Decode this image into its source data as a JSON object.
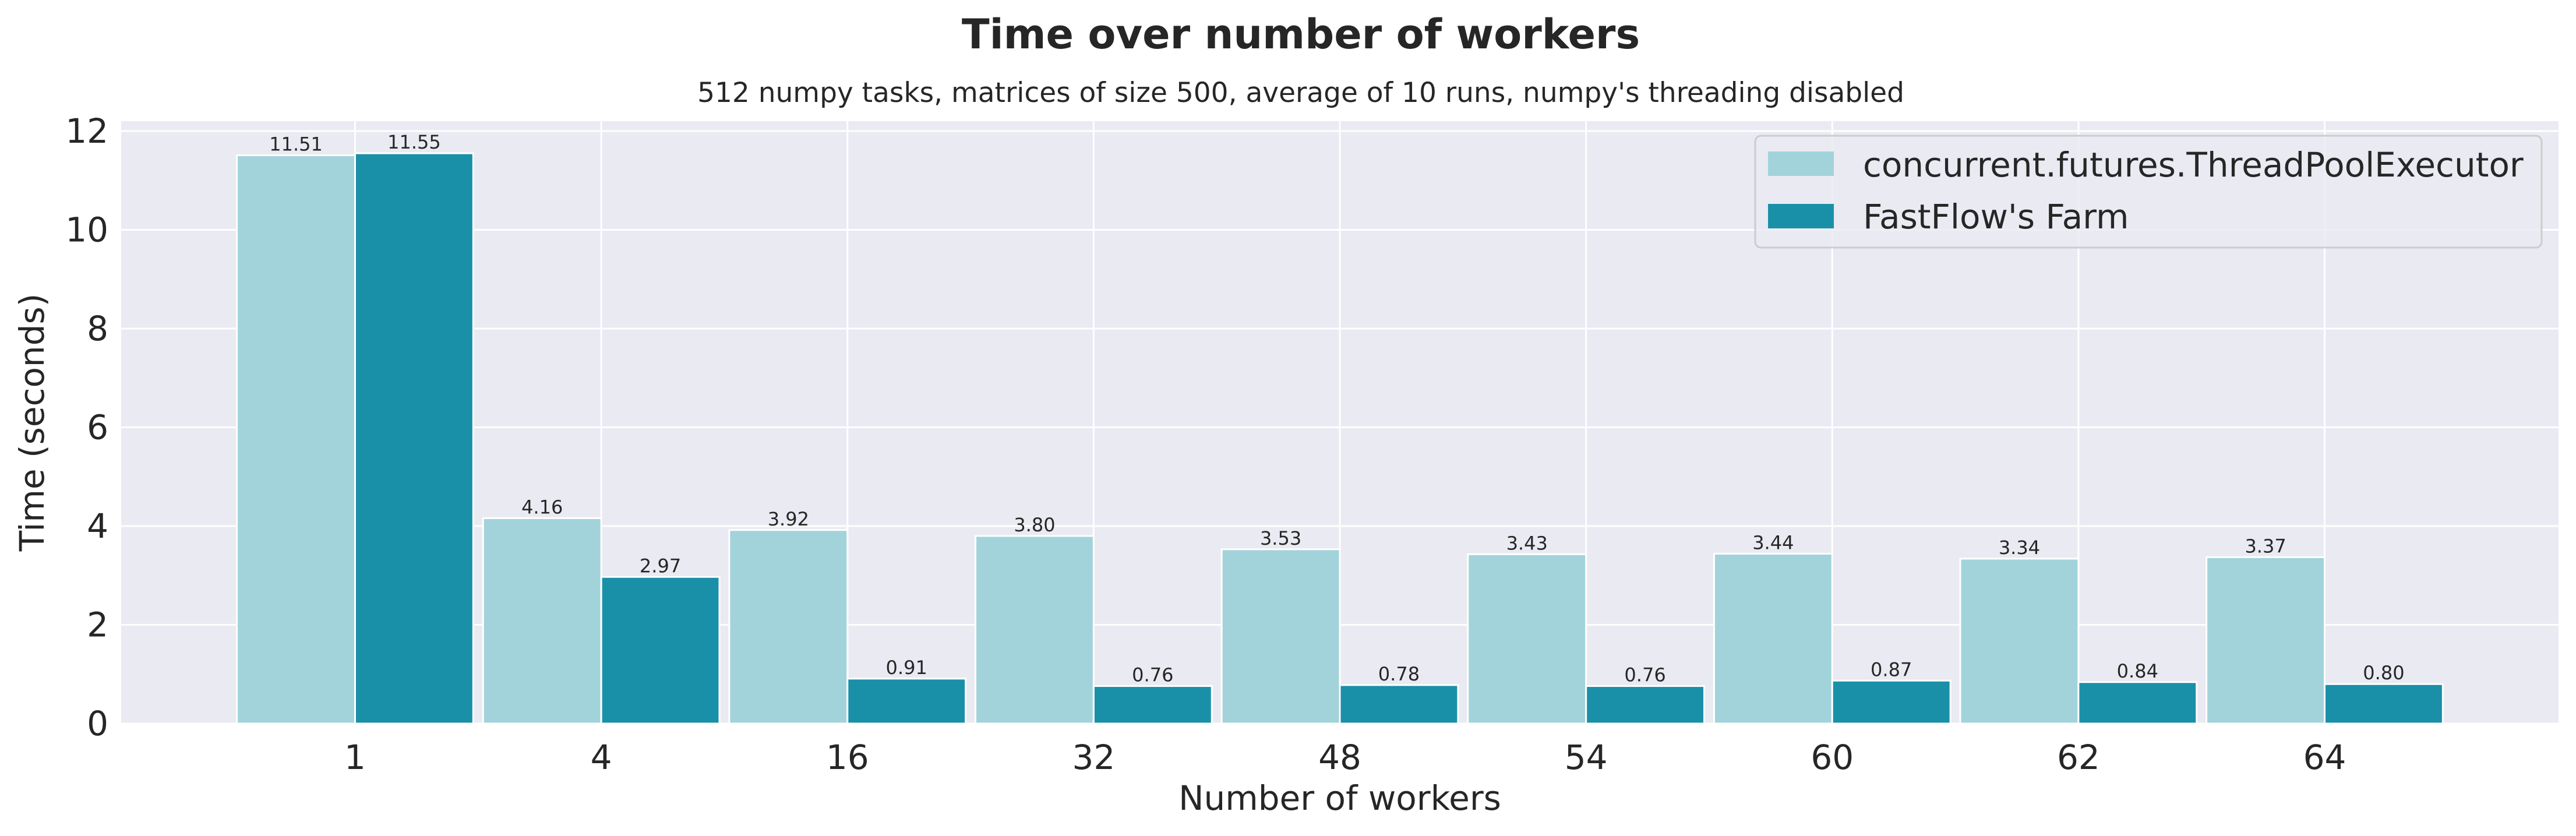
{
  "chart_data": {
    "type": "bar",
    "title": "Time over number of workers",
    "subtitle": "512 numpy tasks, matrices of size 500, average of 10 runs, numpy's threading disabled",
    "xlabel": "Number of workers",
    "ylabel": "Time (seconds)",
    "categories": [
      "1",
      "4",
      "16",
      "32",
      "48",
      "54",
      "60",
      "62",
      "64"
    ],
    "ylim": [
      0,
      12.2
    ],
    "yticks": [
      0,
      2,
      4,
      6,
      8,
      10,
      12
    ],
    "grid": true,
    "legend_position": "top-right",
    "series": [
      {
        "name": "concurrent.futures.ThreadPoolExecutor",
        "color": "#a2d3db",
        "values": [
          11.51,
          4.16,
          3.92,
          3.8,
          3.53,
          3.43,
          3.44,
          3.34,
          3.37
        ],
        "labels": [
          "11.51",
          "4.16",
          "3.92",
          "3.80",
          "3.53",
          "3.43",
          "3.44",
          "3.34",
          "3.37"
        ]
      },
      {
        "name": "FastFlow's Farm",
        "color": "#1a90a8",
        "values": [
          11.55,
          2.97,
          0.91,
          0.76,
          0.78,
          0.76,
          0.87,
          0.84,
          0.8
        ],
        "labels": [
          "11.55",
          "2.97",
          "0.91",
          "0.76",
          "0.78",
          "0.76",
          "0.87",
          "0.84",
          "0.80"
        ]
      }
    ],
    "colors": {
      "plot_background": "#eaeaf2",
      "grid": "#ffffff",
      "text": "#262626"
    }
  }
}
